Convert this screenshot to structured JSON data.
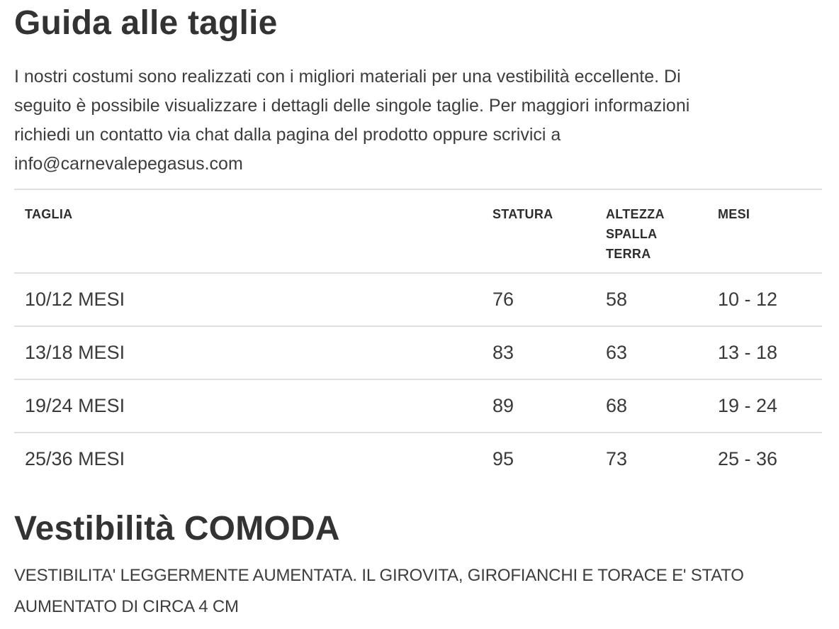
{
  "page": {
    "title": "Guida alle taglie",
    "intro": {
      "lines": [
        "I nostri costumi sono realizzati con i migliori materiali per una vestibilità eccellente. Di",
        "seguito è possibile visualizzare i dettagli delle singole taglie. Per maggiori informazioni",
        "richiedi un contatto via chat dalla pagina del prodotto oppure scrivici a",
        "info@carnevalepegasus.com"
      ]
    },
    "size_table": {
      "columns": [
        "TAGLIA",
        "STATURA",
        "ALTEZZA SPALLA TERRA",
        "MESI"
      ],
      "rows": [
        {
          "taglia": "10/12 MESI",
          "statura": "76",
          "altezza_spalla_terra": "58",
          "mesi": "10 - 12"
        },
        {
          "taglia": "13/18 MESI",
          "statura": "83",
          "altezza_spalla_terra": "63",
          "mesi": "13 - 18"
        },
        {
          "taglia": "19/24 MESI",
          "statura": "89",
          "altezza_spalla_terra": "68",
          "mesi": "19 - 24"
        },
        {
          "taglia": "25/36 MESI",
          "statura": "95",
          "altezza_spalla_terra": "73",
          "mesi": "25 - 36"
        }
      ]
    },
    "fit": {
      "heading": "Vestibilità COMODA",
      "lines": [
        "VESTIBILITA' LEGGERMENTE AUMENTATA. IL GIROVITA, GIROFIANCHI E TORACE E' STATO",
        "AUMENTATO DI CIRCA 4 CM"
      ]
    },
    "colors": {
      "heading_text": "#333333",
      "body_text": "#3d3d3d",
      "table_border": "#e0e0e0",
      "background": "#ffffff"
    }
  }
}
